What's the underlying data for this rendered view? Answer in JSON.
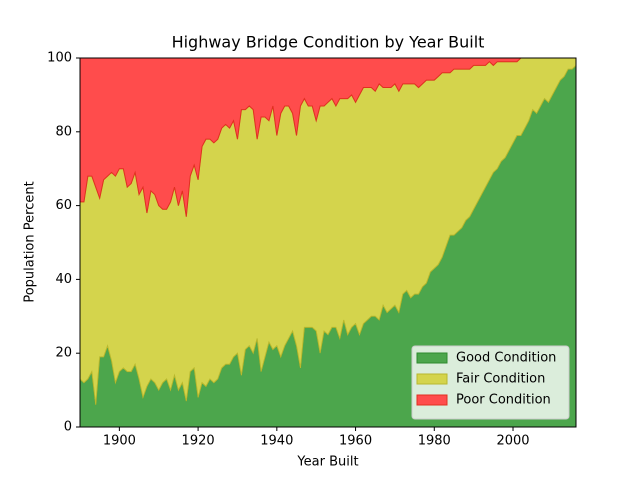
{
  "chart_data": {
    "type": "stacked_area",
    "title": "Highway Bridge Condition by Year Built",
    "xlabel": "Year Built",
    "ylabel": "Population Percent",
    "x": [
      1890,
      1891,
      1892,
      1893,
      1894,
      1895,
      1896,
      1897,
      1898,
      1899,
      1900,
      1901,
      1902,
      1903,
      1904,
      1905,
      1906,
      1907,
      1908,
      1909,
      1910,
      1911,
      1912,
      1913,
      1914,
      1915,
      1916,
      1917,
      1918,
      1919,
      1920,
      1921,
      1922,
      1923,
      1924,
      1925,
      1926,
      1927,
      1928,
      1929,
      1930,
      1931,
      1932,
      1933,
      1934,
      1935,
      1936,
      1937,
      1938,
      1939,
      1940,
      1941,
      1942,
      1943,
      1944,
      1945,
      1946,
      1947,
      1948,
      1949,
      1950,
      1951,
      1952,
      1953,
      1954,
      1955,
      1956,
      1957,
      1958,
      1959,
      1960,
      1961,
      1962,
      1963,
      1964,
      1965,
      1966,
      1967,
      1968,
      1969,
      1970,
      1971,
      1972,
      1973,
      1974,
      1975,
      1976,
      1977,
      1978,
      1979,
      1980,
      1981,
      1982,
      1983,
      1984,
      1985,
      1986,
      1987,
      1988,
      1989,
      1990,
      1991,
      1992,
      1993,
      1994,
      1995,
      1996,
      1997,
      1998,
      1999,
      2000,
      2001,
      2002,
      2003,
      2004,
      2005,
      2006,
      2007,
      2008,
      2009,
      2010,
      2011,
      2012,
      2013,
      2014,
      2015,
      2016
    ],
    "series": [
      {
        "name": "Good Condition",
        "color": "#4ca64c",
        "edge": "#2e8b2e",
        "values": [
          13,
          12,
          13,
          15,
          6,
          19,
          19,
          22,
          18,
          12,
          15,
          16,
          15,
          15,
          17,
          13,
          8,
          11,
          13,
          12,
          10,
          12,
          13,
          10,
          14,
          10,
          12,
          7,
          15,
          16,
          8,
          12,
          11,
          13,
          12,
          13,
          16,
          17,
          17,
          19,
          20,
          14,
          21,
          22,
          20,
          24,
          15,
          19,
          23,
          21,
          22,
          19,
          22,
          24,
          26,
          22,
          16,
          27,
          27,
          27,
          26,
          20,
          26,
          25,
          27,
          27,
          24,
          29,
          25,
          27,
          28,
          25,
          28,
          29,
          30,
          30,
          29,
          33,
          31,
          32,
          33,
          31,
          36,
          37,
          35,
          36,
          36,
          38,
          39,
          42,
          43,
          44,
          46,
          49,
          52,
          52,
          53,
          54,
          56,
          57,
          59,
          61,
          63,
          65,
          67,
          69,
          70,
          72,
          73,
          75,
          77,
          79,
          79,
          81,
          83,
          86,
          85,
          87,
          89,
          88,
          90,
          92,
          94,
          95,
          97,
          97,
          98
        ]
      },
      {
        "name": "Fair Condition",
        "color": "#d4d44c",
        "edge": "#b8b82e",
        "values": [
          48,
          49,
          55,
          53,
          59,
          43,
          48,
          46,
          51,
          56,
          55,
          54,
          50,
          51,
          52,
          50,
          57,
          47,
          51,
          51,
          50,
          47,
          46,
          51,
          51,
          50,
          52,
          50,
          53,
          55,
          59,
          64,
          67,
          65,
          65,
          65,
          65,
          65,
          64,
          64,
          58,
          72,
          65,
          65,
          66,
          54,
          69,
          65,
          60,
          66,
          57,
          66,
          65,
          63,
          59,
          57,
          71,
          62,
          60,
          60,
          57,
          67,
          61,
          63,
          62,
          60,
          65,
          60,
          64,
          63,
          60,
          65,
          64,
          63,
          62,
          61,
          64,
          59,
          61,
          60,
          60,
          60,
          57,
          56,
          58,
          57,
          56,
          55,
          55,
          52,
          51,
          51,
          50,
          47,
          44,
          45,
          44,
          43,
          41,
          40,
          39,
          37,
          35,
          33,
          32,
          29,
          29,
          27,
          26,
          24,
          22,
          20,
          21,
          19,
          17,
          14,
          15,
          13,
          11,
          12,
          10,
          8,
          6,
          5,
          3,
          3,
          2
        ]
      },
      {
        "name": "Poor Condition",
        "color": "#ff4c4c",
        "edge": "#e03020",
        "values": [
          39,
          39,
          32,
          32,
          35,
          38,
          33,
          32,
          31,
          32,
          30,
          30,
          35,
          34,
          31,
          37,
          35,
          42,
          36,
          37,
          40,
          41,
          41,
          39,
          35,
          40,
          36,
          43,
          32,
          29,
          33,
          24,
          22,
          22,
          23,
          22,
          19,
          18,
          19,
          17,
          22,
          14,
          14,
          13,
          14,
          22,
          16,
          16,
          17,
          13,
          21,
          15,
          13,
          13,
          15,
          21,
          13,
          11,
          13,
          13,
          17,
          13,
          13,
          12,
          11,
          13,
          11,
          11,
          11,
          10,
          12,
          10,
          8,
          8,
          8,
          9,
          7,
          8,
          8,
          8,
          7,
          9,
          7,
          7,
          7,
          7,
          8,
          7,
          6,
          6,
          6,
          5,
          4,
          4,
          4,
          3,
          3,
          3,
          3,
          3,
          2,
          2,
          2,
          2,
          1,
          2,
          1,
          1,
          1,
          1,
          1,
          1,
          0,
          0,
          0,
          0,
          0,
          0,
          0,
          0,
          0,
          0,
          0,
          0,
          0,
          0,
          0
        ]
      }
    ],
    "xlim": [
      1890,
      2016
    ],
    "ylim": [
      0,
      100
    ],
    "xticks": [
      1900,
      1920,
      1940,
      1960,
      1980,
      2000
    ],
    "yticks": [
      0,
      20,
      40,
      60,
      80,
      100
    ],
    "legend": "lower right"
  }
}
